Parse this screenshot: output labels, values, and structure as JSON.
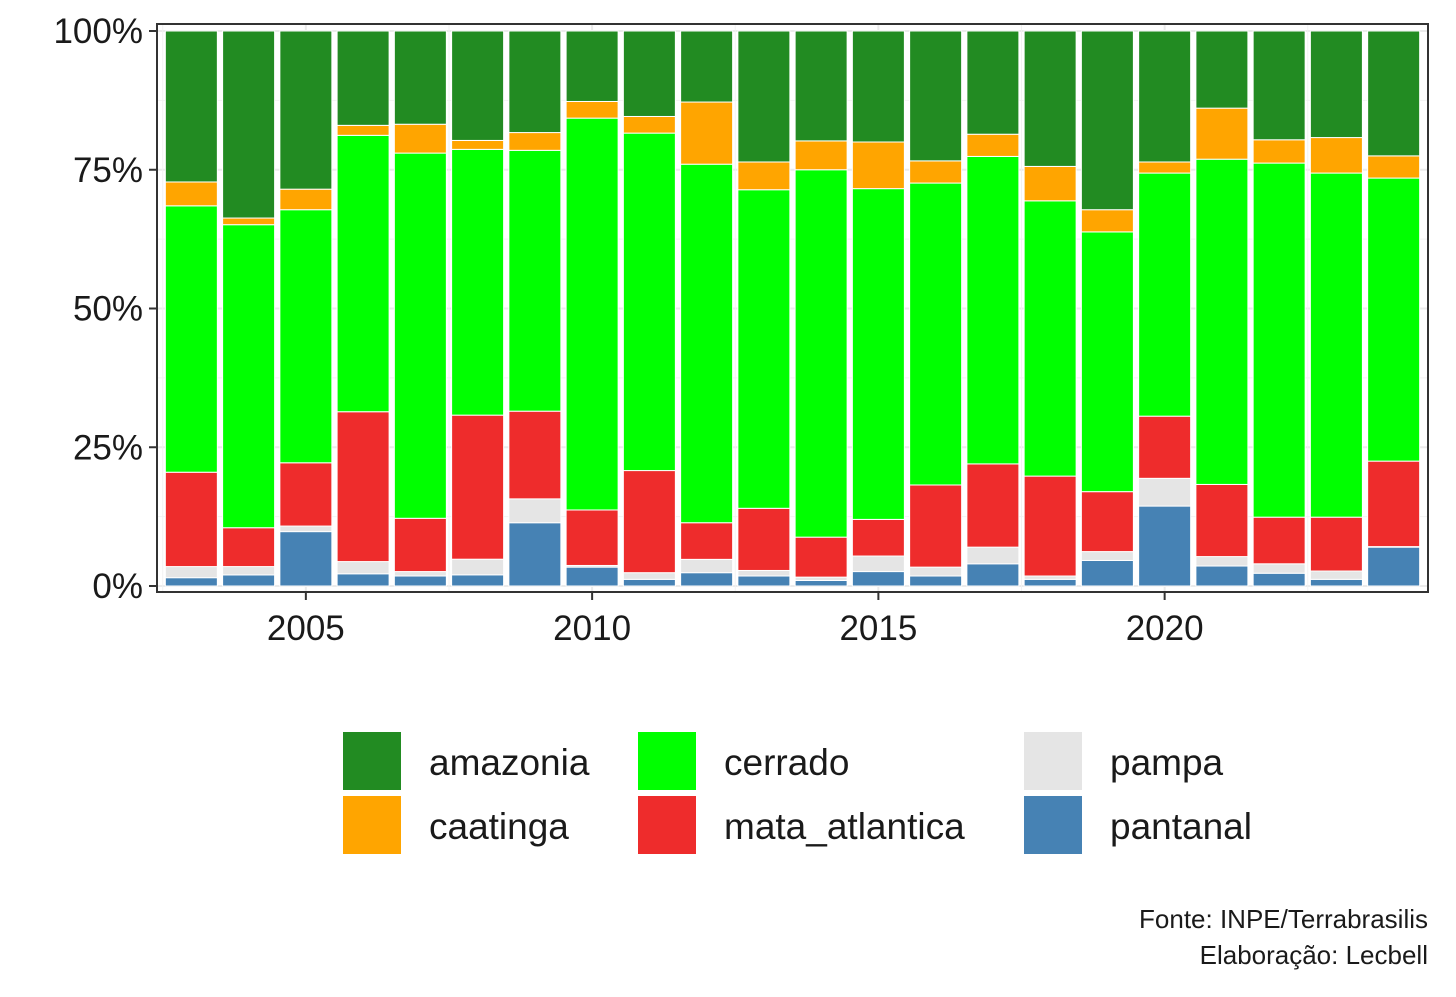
{
  "chart_data": {
    "type": "bar",
    "stacked": "percent",
    "title": "",
    "xlabel": "",
    "ylabel": "",
    "ylim": [
      0,
      1
    ],
    "y_ticks": [
      {
        "value": 0,
        "label": "0%"
      },
      {
        "value": 0.25,
        "label": "25%"
      },
      {
        "value": 0.5,
        "label": "50%"
      },
      {
        "value": 0.75,
        "label": "75%"
      },
      {
        "value": 1,
        "label": "100%"
      }
    ],
    "x_ticks": [
      {
        "value": 2005,
        "label": "2005"
      },
      {
        "value": 2010,
        "label": "2010"
      },
      {
        "value": 2015,
        "label": "2015"
      },
      {
        "value": 2020,
        "label": "2020"
      }
    ],
    "xlim": [
      2002.4,
      2024.6
    ],
    "categories": [
      2003,
      2004,
      2005,
      2006,
      2007,
      2008,
      2009,
      2010,
      2011,
      2012,
      2013,
      2014,
      2015,
      2016,
      2017,
      2018,
      2019,
      2020,
      2021,
      2022,
      2023,
      2024
    ],
    "series": [
      {
        "name": "pantanal",
        "color": "#4682B4",
        "values": [
          1.5,
          2.0,
          9.8,
          2.2,
          1.8,
          2.0,
          11.4,
          3.4,
          1.2,
          2.4,
          1.8,
          1.0,
          2.6,
          1.8,
          4.0,
          1.2,
          4.6,
          14.4,
          3.6,
          2.3,
          1.2,
          7.0
        ]
      },
      {
        "name": "pampa",
        "color": "#E5E5E5",
        "values": [
          2.0,
          1.5,
          1.0,
          2.2,
          0.8,
          2.8,
          4.3,
          0.3,
          1.2,
          2.4,
          1.0,
          0.6,
          2.8,
          1.6,
          3.0,
          0.6,
          1.6,
          5.0,
          1.7,
          1.7,
          1.5,
          0.1
        ]
      },
      {
        "name": "mata_atlantica",
        "color": "#EE2C2C",
        "values": [
          17.0,
          7.0,
          11.4,
          27.0,
          9.6,
          25.8,
          15.8,
          10.0,
          18.4,
          6.6,
          11.2,
          7.2,
          6.6,
          14.8,
          15.0,
          18.0,
          10.8,
          11.2,
          13.0,
          8.4,
          9.7,
          15.4
        ]
      },
      {
        "name": "cerrado",
        "color": "#00FF00",
        "values": [
          48.0,
          54.6,
          45.6,
          49.8,
          65.8,
          47.6,
          47.0,
          70.6,
          60.8,
          64.6,
          57.4,
          66.2,
          59.6,
          54.4,
          55.4,
          49.6,
          46.8,
          43.8,
          58.6,
          63.8,
          62.0,
          51.0
        ]
      },
      {
        "name": "caatinga",
        "color": "#FFA500",
        "values": [
          4.3,
          1.2,
          3.7,
          1.8,
          5.2,
          1.6,
          3.2,
          3.0,
          3.0,
          11.2,
          5.0,
          5.2,
          8.4,
          4.0,
          4.0,
          6.2,
          4.0,
          2.0,
          9.2,
          4.2,
          6.4,
          4.0
        ]
      },
      {
        "name": "amazonia",
        "color": "#228B22",
        "values": [
          27.2,
          33.7,
          28.5,
          17.0,
          16.8,
          19.6,
          18.3,
          12.7,
          15.4,
          12.8,
          23.6,
          19.8,
          20.0,
          23.4,
          18.6,
          24.4,
          32.2,
          23.6,
          13.9,
          19.6,
          19.2,
          22.5
        ]
      }
    ],
    "legend": {
      "position": "bottom",
      "columns": [
        [
          "amazonia",
          "caatinga"
        ],
        [
          "cerrado",
          "mata_atlantica"
        ],
        [
          "pampa",
          "pantanal"
        ]
      ]
    }
  },
  "caption": {
    "source": "Fonte: INPE/Terrabrasilis",
    "author": "Elaboração: Lecbell"
  }
}
